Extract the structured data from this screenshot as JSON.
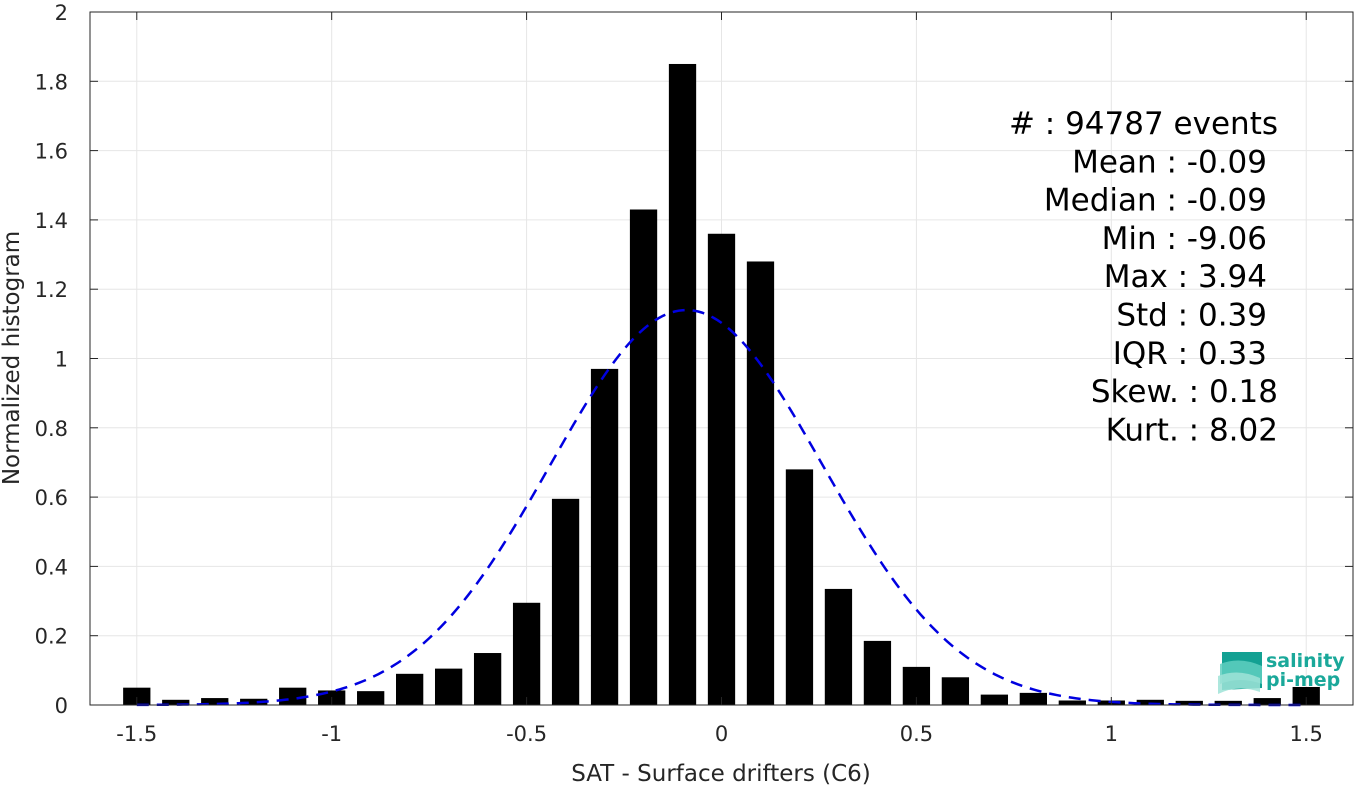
{
  "chart_data": {
    "type": "bar",
    "xlabel": "SAT - Surface drifters (C6)",
    "ylabel": "Normalized histogram",
    "xlim": [
      -1.62,
      1.62
    ],
    "ylim": [
      0,
      2
    ],
    "grid": true,
    "x_ticks": [
      -1.5,
      -1,
      -0.5,
      0,
      0.5,
      1,
      1.5
    ],
    "x_tick_labels": [
      "-1.5",
      "-1",
      "-0.5",
      "0",
      "0.5",
      "1",
      "1.5"
    ],
    "y_ticks": [
      0,
      0.2,
      0.4,
      0.6,
      0.8,
      1,
      1.2,
      1.4,
      1.6,
      1.8,
      2
    ],
    "y_tick_labels": [
      "0",
      "0.2",
      "0.4",
      "0.6",
      "0.8",
      "1",
      "1.2",
      "1.4",
      "1.6",
      "1.8",
      "2"
    ],
    "bar_color": "#000000",
    "bar_width": 0.07,
    "bins": [
      {
        "x": -1.5,
        "y": 0.05
      },
      {
        "x": -1.4,
        "y": 0.015
      },
      {
        "x": -1.3,
        "y": 0.02
      },
      {
        "x": -1.2,
        "y": 0.018
      },
      {
        "x": -1.1,
        "y": 0.05
      },
      {
        "x": -1.0,
        "y": 0.042
      },
      {
        "x": -0.9,
        "y": 0.04
      },
      {
        "x": -0.8,
        "y": 0.09
      },
      {
        "x": -0.7,
        "y": 0.105
      },
      {
        "x": -0.6,
        "y": 0.15
      },
      {
        "x": -0.5,
        "y": 0.295
      },
      {
        "x": -0.4,
        "y": 0.595
      },
      {
        "x": -0.3,
        "y": 0.97
      },
      {
        "x": -0.2,
        "y": 1.43
      },
      {
        "x": -0.1,
        "y": 1.85
      },
      {
        "x": 0.0,
        "y": 1.36
      },
      {
        "x": 0.1,
        "y": 1.28
      },
      {
        "x": 0.2,
        "y": 0.68
      },
      {
        "x": 0.3,
        "y": 0.335
      },
      {
        "x": 0.4,
        "y": 0.185
      },
      {
        "x": 0.5,
        "y": 0.11
      },
      {
        "x": 0.6,
        "y": 0.08
      },
      {
        "x": 0.7,
        "y": 0.03
      },
      {
        "x": 0.8,
        "y": 0.035
      },
      {
        "x": 0.9,
        "y": 0.013
      },
      {
        "x": 1.0,
        "y": 0.013
      },
      {
        "x": 1.1,
        "y": 0.015
      },
      {
        "x": 1.2,
        "y": 0.012
      },
      {
        "x": 1.3,
        "y": 0.012
      },
      {
        "x": 1.4,
        "y": 0.02
      },
      {
        "x": 1.5,
        "y": 0.052
      }
    ],
    "fit_curve": {
      "style": "dashed",
      "color": "#0000e0",
      "mean": -0.09,
      "std": 0.35,
      "x_range": [
        -1.5,
        1.5
      ]
    },
    "stats": [
      {
        "label": "#  : 94787 events"
      },
      {
        "label": "Mean : -0.09"
      },
      {
        "label": "Median : -0.09"
      },
      {
        "label": "Min : -9.06"
      },
      {
        "label": "Max : 3.94"
      },
      {
        "label": "Std : 0.39"
      },
      {
        "label": "IQR : 0.33"
      },
      {
        "label": "Skew. : 0.18"
      },
      {
        "label": "Kurt. : 8.02"
      }
    ]
  },
  "logo": {
    "line1": "salinity",
    "line2": "pi-mep",
    "icon": "salinity-layers-icon",
    "color": "#1aa89a"
  }
}
